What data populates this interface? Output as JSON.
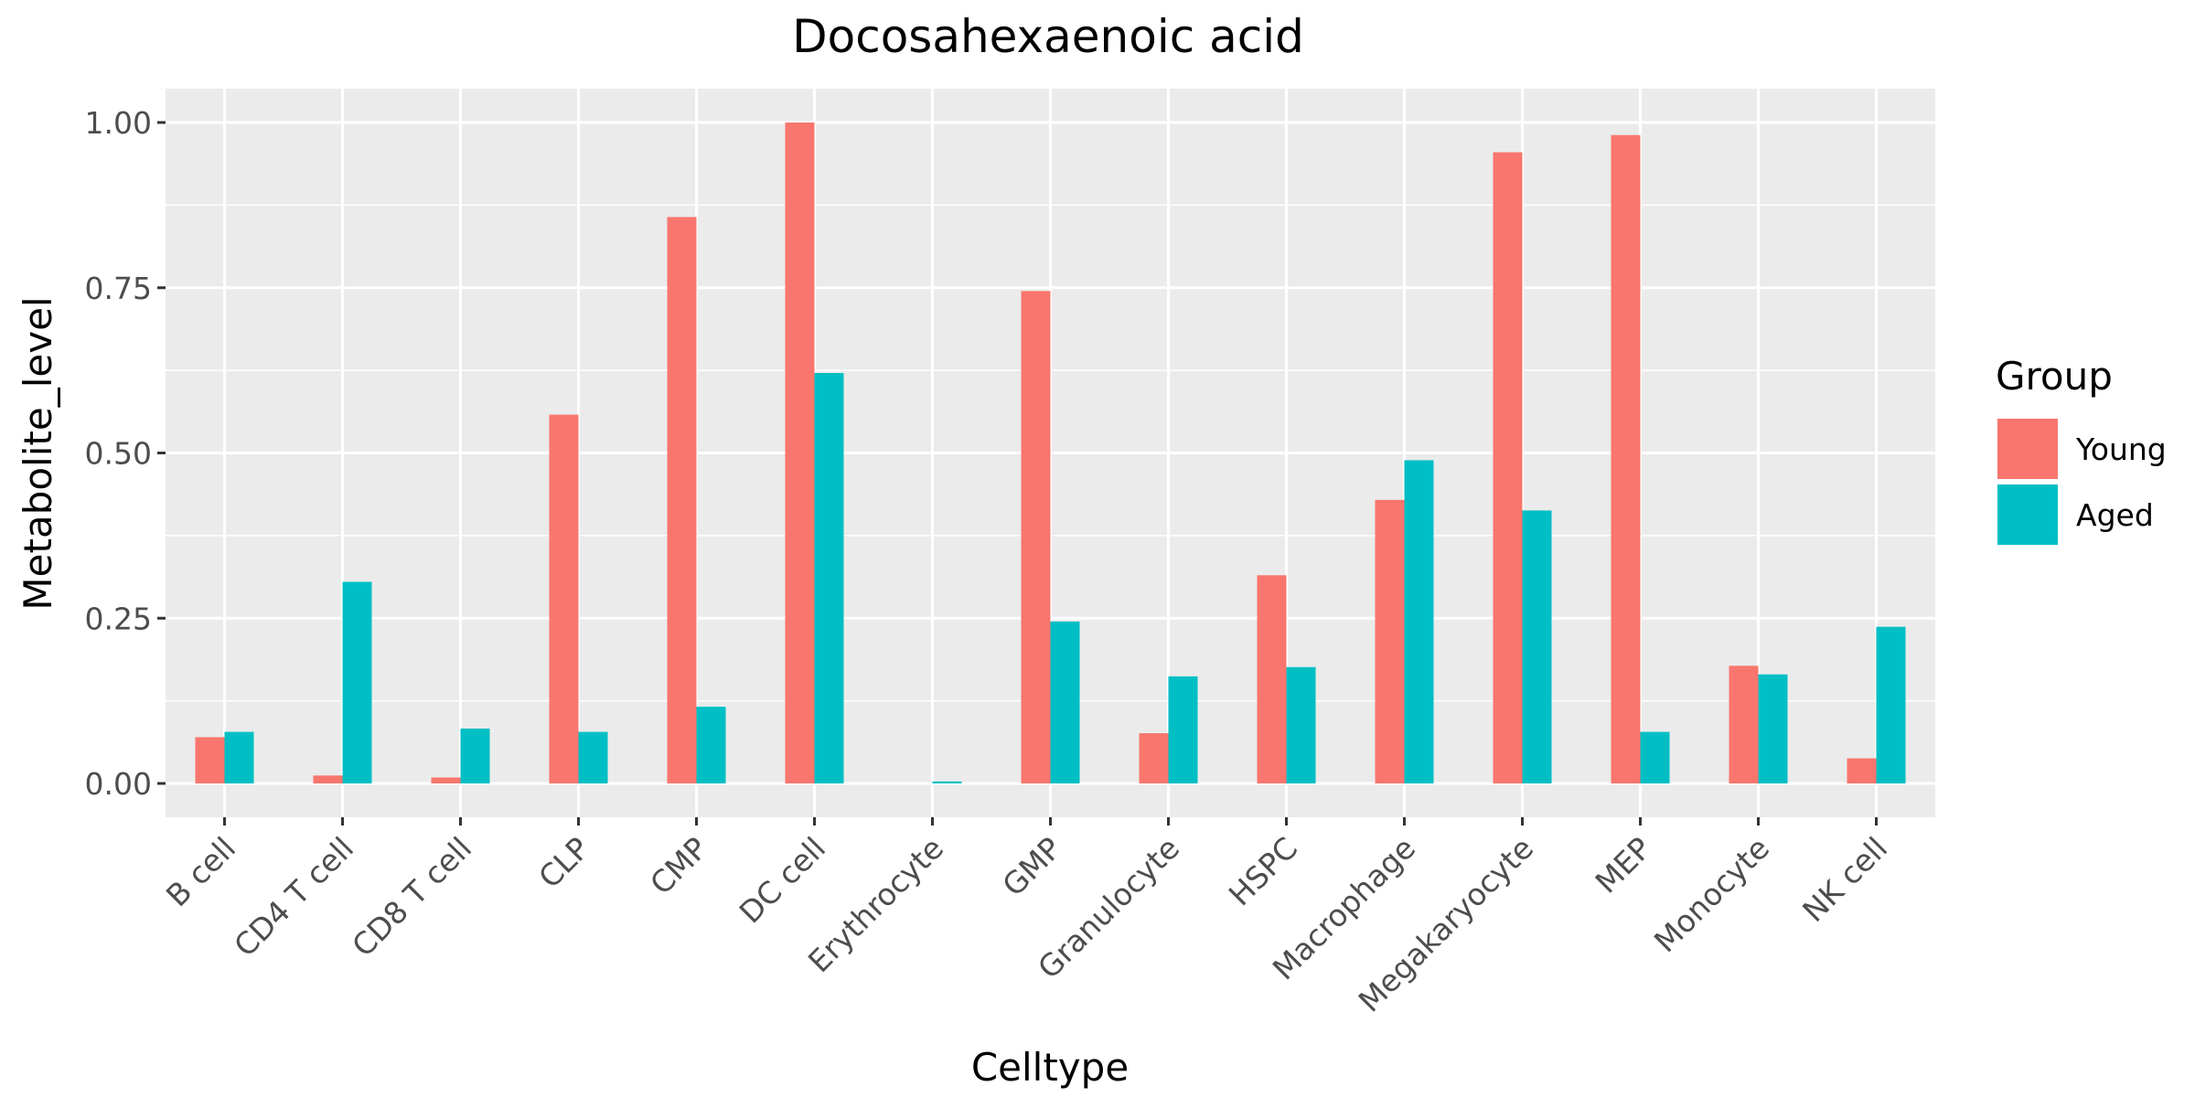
{
  "chart_data": {
    "type": "bar",
    "title": "Docosahexaenoic acid",
    "xlabel": "Celltype",
    "ylabel": "Metabolite_level",
    "ylim": [
      -0.05,
      1.05
    ],
    "yticks": [
      0.0,
      0.25,
      0.5,
      0.75,
      1.0
    ],
    "ytick_labels": [
      "0.00",
      "0.25",
      "0.50",
      "0.75",
      "1.00"
    ],
    "grid": true,
    "legend": {
      "title": "Group",
      "position": "right"
    },
    "categories": [
      "B cell",
      "CD4 T cell",
      "CD8 T cell",
      "CLP",
      "CMP",
      "DC cell",
      "Erythrocyte",
      "GMP",
      "Granulocyte",
      "HSPC",
      "Macrophage",
      "Megakaryocyte",
      "MEP",
      "Monocyte",
      "NK cell"
    ],
    "series": [
      {
        "name": "Young",
        "color": "#F8766D",
        "values": [
          0.07,
          0.012,
          0.009,
          0.558,
          0.857,
          1.0,
          0.0,
          0.745,
          0.076,
          0.315,
          0.429,
          0.955,
          0.981,
          0.178,
          0.038
        ]
      },
      {
        "name": "Aged",
        "color": "#00BFC4",
        "values": [
          0.078,
          0.305,
          0.083,
          0.078,
          0.116,
          0.621,
          0.003,
          0.245,
          0.162,
          0.176,
          0.489,
          0.413,
          0.078,
          0.165,
          0.237
        ]
      }
    ]
  }
}
